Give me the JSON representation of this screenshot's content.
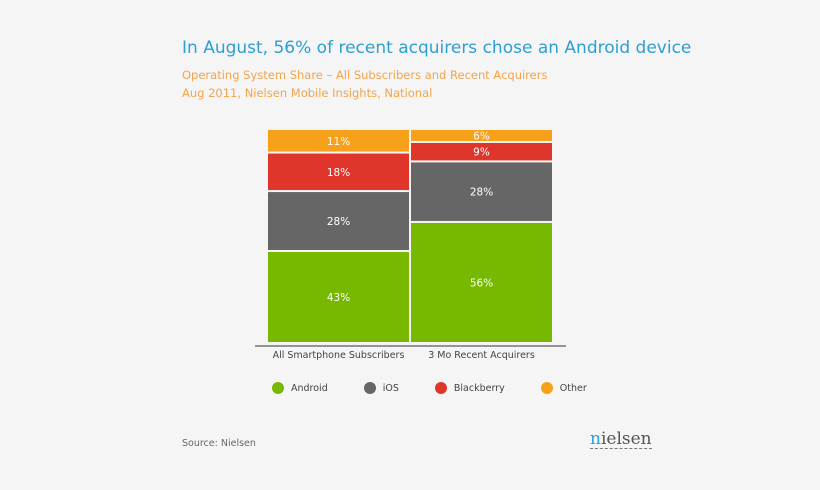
{
  "title": "In August, 56% of recent acquirers chose an Android device",
  "subtitle1": "Operating System Share – All Subscribers and Recent Acquirers",
  "subtitle2": "Aug 2011, Nielsen Mobile Insights, National",
  "source": "Source: Nielsen",
  "logo": "nielsen",
  "chart_data": {
    "type": "bar",
    "stacked": true,
    "categories": [
      "All Smartphone Subscribers",
      "3 Mo Recent Acquirers"
    ],
    "series": [
      {
        "name": "Android",
        "values": [
          43,
          56
        ],
        "color": "#76b900"
      },
      {
        "name": "iOS",
        "values": [
          28,
          28
        ],
        "color": "#666666"
      },
      {
        "name": "Blackberry",
        "values": [
          18,
          9
        ],
        "color": "#e0352b"
      },
      {
        "name": "Other",
        "values": [
          11,
          6
        ],
        "color": "#f7a11a"
      }
    ],
    "value_suffix": "%",
    "legend": "bottom"
  }
}
